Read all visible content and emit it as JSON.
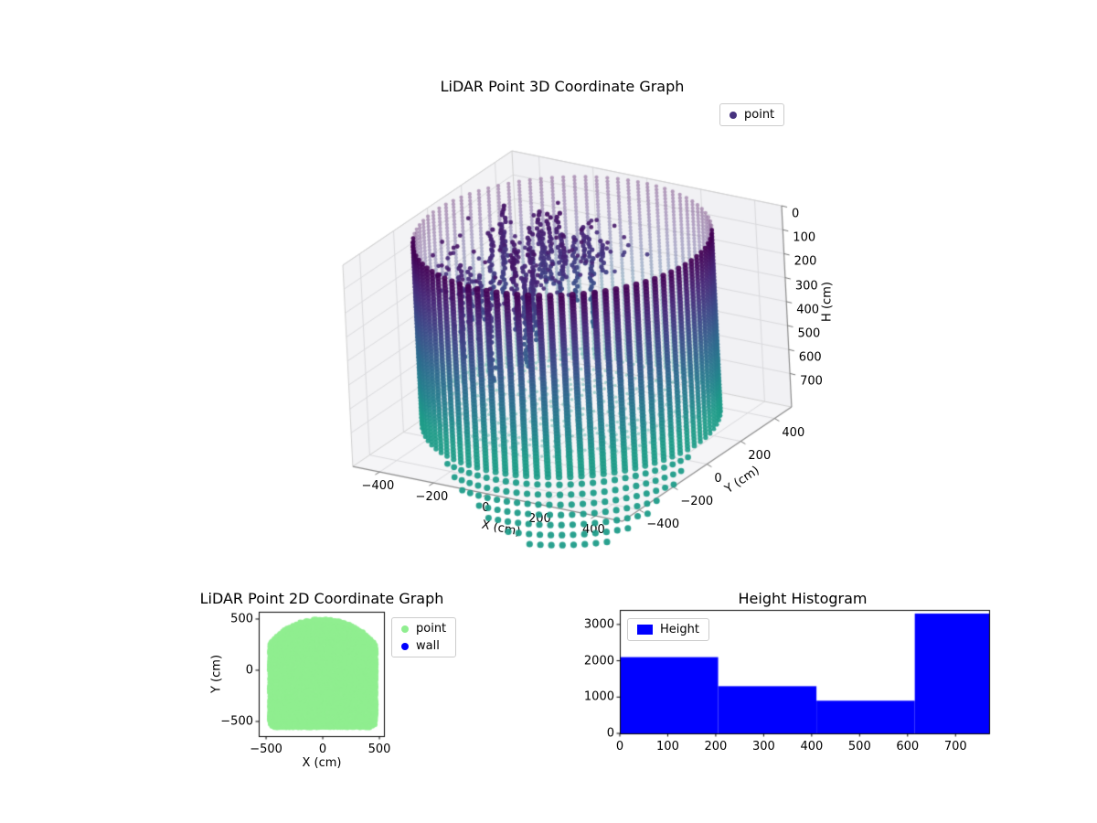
{
  "figure": {
    "background": "#ffffff"
  },
  "chart_data": [
    {
      "id": "lidar-3d",
      "type": "scatter3d",
      "title": "LiDAR Point 3D Coordinate Graph",
      "xlabel": "X (cm)",
      "ylabel": "Y (cm)",
      "hlabel": "H (cm)",
      "xticks": [
        -400,
        -200,
        0,
        200,
        400
      ],
      "yticks": [
        -400,
        -200,
        0,
        200,
        400
      ],
      "hticks": [
        0,
        100,
        200,
        300,
        400,
        500,
        600,
        700
      ],
      "xlim": [
        -500,
        500
      ],
      "ylim": [
        -500,
        500
      ],
      "hlim": [
        0,
        840
      ],
      "h_axis_inverted": true,
      "legend": [
        {
          "label": "point",
          "color": "#46327e"
        }
      ],
      "cloud": {
        "shape": "open-topped cylindrical room scan",
        "radius_cm": 470,
        "wall_height_range_cm": [
          0,
          770
        ],
        "wall_columns": 84,
        "wall_row_step_cm": 14,
        "front_drip_max_extra_cm": 380,
        "floor_h_cm": 700,
        "interior_clutter_region": "upper-left interior, H 50-660",
        "colormap": "viridis",
        "colormap_range": [
          0,
          0.62
        ],
        "color_by": "height"
      }
    },
    {
      "id": "lidar-2d",
      "type": "scatter",
      "title": "LiDAR Point 2D Coordinate Graph",
      "xlabel": "X (cm)",
      "ylabel": "Y (cm)",
      "xticks": [
        -500,
        0,
        500
      ],
      "yticks": [
        -500,
        0,
        500
      ],
      "xlim": [
        -565,
        540
      ],
      "ylim": [
        -643,
        571
      ],
      "legend": [
        {
          "label": "point",
          "color": "#90ee90"
        },
        {
          "label": "wall",
          "color": "#0000ff"
        }
      ],
      "blob": {
        "color": "#90ee90",
        "halfwidth_cm": 465,
        "top_y_cm": 500,
        "bottom_y_cm": -560,
        "dome_center_y_cm": -60,
        "dome_radius_cm": 560,
        "corner_radius_cm": 60
      }
    },
    {
      "id": "height-histogram",
      "type": "bar",
      "title": "Height Histogram",
      "legend": [
        {
          "label": "Height",
          "color": "#0000ff"
        }
      ],
      "bar_color": "#0000ff",
      "bin_edges": [
        0,
        205,
        410,
        615,
        770
      ],
      "counts": [
        2100,
        1300,
        900,
        3300
      ],
      "xticks": [
        0,
        100,
        200,
        300,
        400,
        500,
        600,
        700
      ],
      "yticks": [
        0,
        1000,
        2000,
        3000
      ],
      "xlim": [
        0,
        770
      ],
      "ylim": [
        0,
        3400
      ]
    }
  ]
}
